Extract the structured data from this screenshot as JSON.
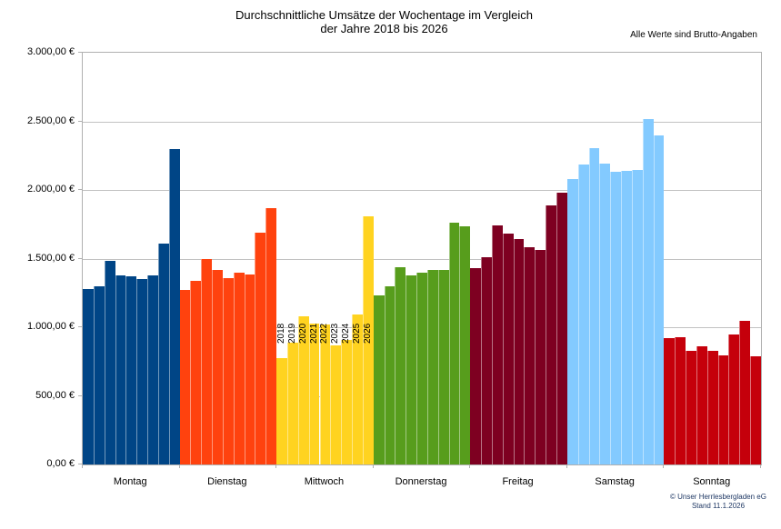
{
  "title": {
    "line1": "Durchschnittliche Umsätze der Wochentage im Vergleich",
    "line2": "der Jahre 2018 bis 2026"
  },
  "note": "Alle Werte sind Brutto-Angaben",
  "footer": {
    "copyright": "© Unser Herrlesbergladen eG",
    "stand": "Stand 11.1.2026"
  },
  "chart_data": {
    "type": "bar",
    "title": "Durchschnittliche Umsätze der Wochentage im Vergleich der Jahre 2018 bis 2026",
    "note": "Alle Werte sind Brutto-Angaben",
    "categories": [
      "Montag",
      "Dienstag",
      "Mittwoch",
      "Donnerstag",
      "Freitag",
      "Samstag",
      "Sonntag"
    ],
    "years": [
      "2018",
      "2019",
      "2020",
      "2021",
      "2022",
      "2023",
      "2024",
      "2025",
      "2026"
    ],
    "series": [
      {
        "name": "Montag",
        "color": "#004586",
        "values": [
          1280,
          1300,
          1485,
          1375,
          1370,
          1350,
          1375,
          1610,
          2300
        ]
      },
      {
        "name": "Dienstag",
        "color": "#ff420e",
        "values": [
          1270,
          1340,
          1500,
          1420,
          1360,
          1400,
          1385,
          1690,
          1870
        ]
      },
      {
        "name": "Mittwoch",
        "color": "#ffd320",
        "values": [
          775,
          885,
          1080,
          1025,
          1020,
          870,
          905,
          1095,
          1810
        ]
      },
      {
        "name": "Donnerstag",
        "color": "#579d1c",
        "values": [
          1230,
          1295,
          1435,
          1380,
          1395,
          1415,
          1420,
          1760,
          1735
        ]
      },
      {
        "name": "Freitag",
        "color": "#7e0021",
        "values": [
          1430,
          1510,
          1740,
          1680,
          1640,
          1585,
          1565,
          1890,
          1980
        ]
      },
      {
        "name": "Samstag",
        "color": "#83caff",
        "values": [
          2080,
          2185,
          2305,
          2195,
          2130,
          2140,
          2145,
          2515,
          2400
        ]
      },
      {
        "name": "Sonntag",
        "color": "#c5000b",
        "values": [
          920,
          930,
          830,
          860,
          830,
          795,
          950,
          1045,
          790
        ]
      }
    ],
    "ylim": [
      0,
      3000
    ],
    "ytick_interval": 500,
    "yticks": [
      {
        "value": 0,
        "label": "0,00 €"
      },
      {
        "value": 500,
        "label": "500,00 €"
      },
      {
        "value": 1000,
        "label": "1.000,00 €"
      },
      {
        "value": 1500,
        "label": "1.500,00 €"
      },
      {
        "value": 2000,
        "label": "2.000,00 €"
      },
      {
        "value": 2500,
        "label": "2.500,00 €"
      },
      {
        "value": 3000,
        "label": "3.000,00 €"
      }
    ],
    "grid": true,
    "legend_position": "none",
    "year_labels_on_group": "Mittwoch"
  }
}
